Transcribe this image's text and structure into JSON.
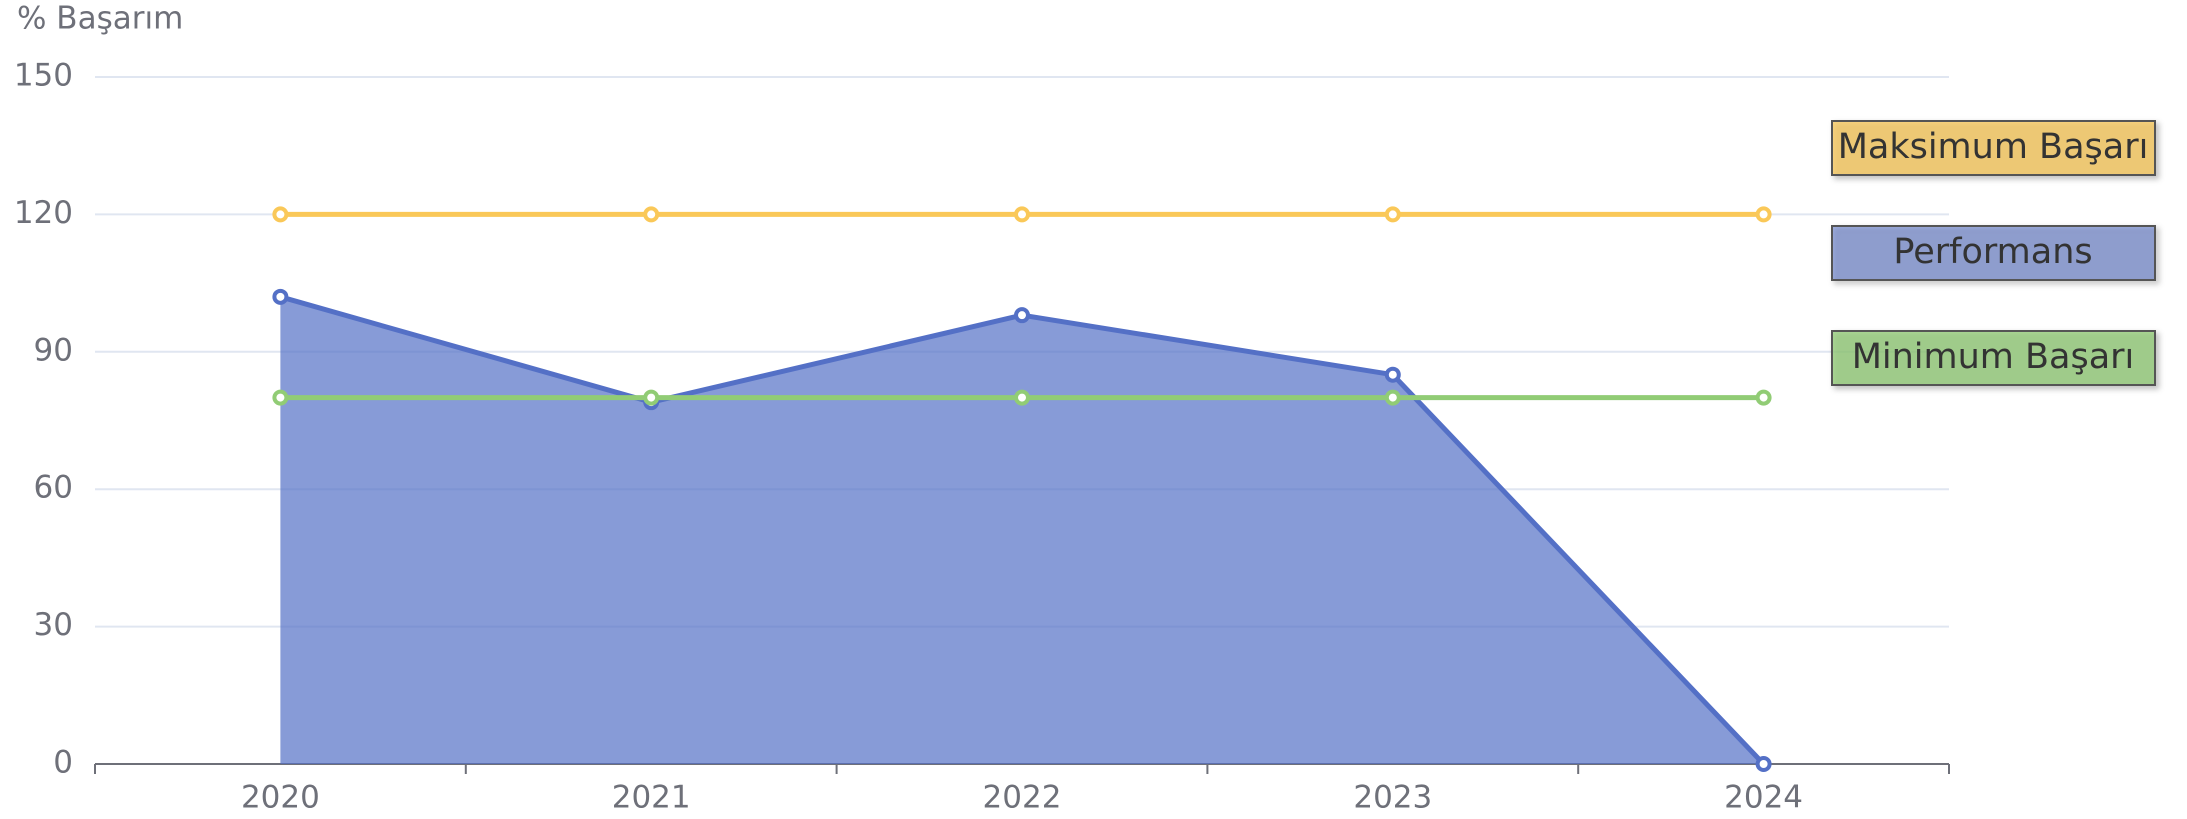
{
  "chart_data": {
    "type": "line",
    "y_label": "% Başarım",
    "categories": [
      "2020",
      "2021",
      "2022",
      "2023",
      "2024"
    ],
    "series": [
      {
        "name": "Maksimum Başarı",
        "color": "#fac858",
        "values": [
          120,
          120,
          120,
          120,
          120
        ]
      },
      {
        "name": "Performans",
        "color": "#5470c6",
        "area": true,
        "values": [
          102,
          79,
          98,
          85,
          0
        ]
      },
      {
        "name": "Minimum Başarı",
        "color": "#91cc75",
        "values": [
          80,
          80,
          80,
          80,
          80
        ]
      }
    ],
    "ylim": [
      0,
      150
    ],
    "yticks": [
      0,
      30,
      60,
      90,
      120,
      150
    ],
    "grid": true,
    "legend": "right"
  }
}
